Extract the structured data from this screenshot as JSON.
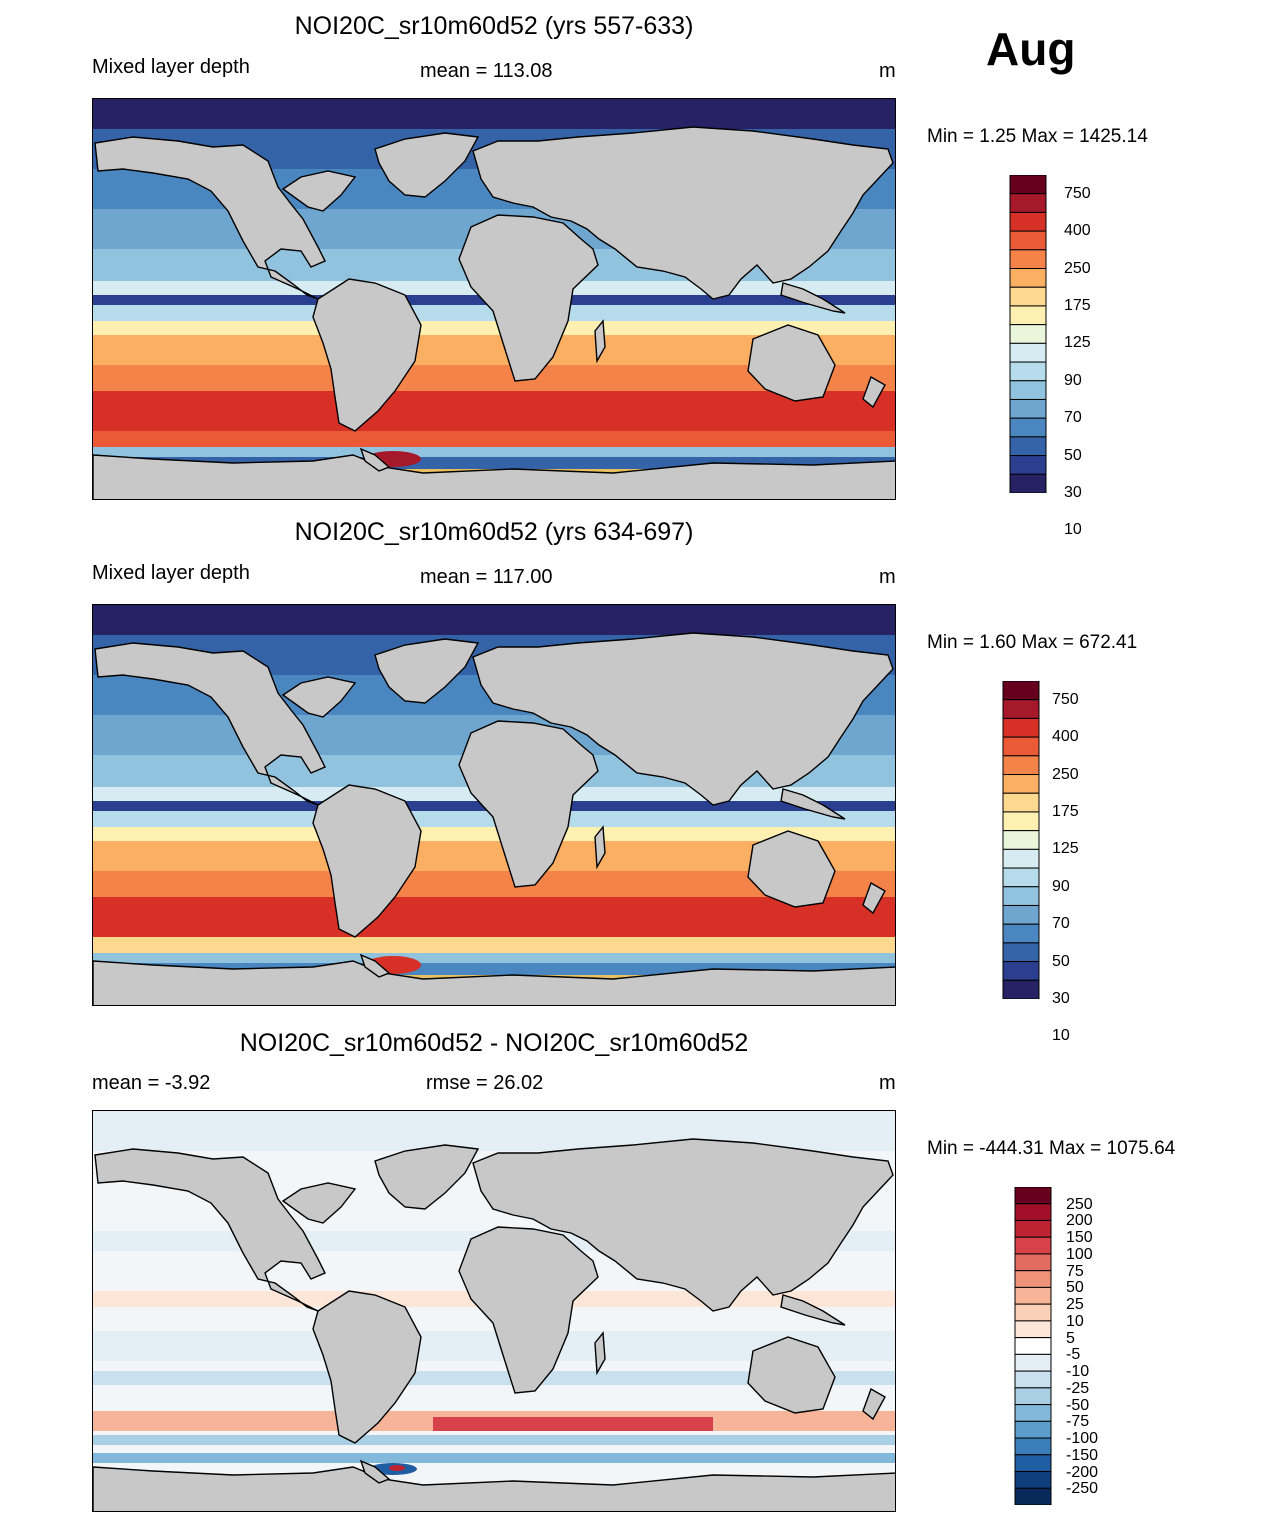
{
  "month": "Aug",
  "panels": [
    {
      "title": "NOI20C_sr10m60d52 (yrs 557-633)",
      "left_label": "Mixed layer depth",
      "center_label": "mean = 113.08",
      "units": "m",
      "minmax": "Min =    1.25 Max = 1425.14",
      "colorbar": {
        "labels": [
          "750",
          "400",
          "250",
          "175",
          "125",
          "90",
          "70",
          "50",
          "30",
          "10"
        ],
        "colors": [
          "#67001f",
          "#a6192a",
          "#d73027",
          "#ea5a36",
          "#f4834a",
          "#fbaf62",
          "#fdd88f",
          "#fdf0b0",
          "#e9f6d9",
          "#d6ecf2",
          "#b6dbea",
          "#92c3de",
          "#6ea6cf",
          "#4a86bf",
          "#3463a8",
          "#2a3f8f",
          "#262263"
        ]
      }
    },
    {
      "title": "NOI20C_sr10m60d52 (yrs 634-697)",
      "left_label": "Mixed layer depth",
      "center_label": "mean = 117.00",
      "units": "m",
      "minmax": "Min =    1.60 Max = 672.41",
      "colorbar": {
        "labels": [
          "750",
          "400",
          "250",
          "175",
          "125",
          "90",
          "70",
          "50",
          "30",
          "10"
        ],
        "colors": [
          "#67001f",
          "#a6192a",
          "#d73027",
          "#ea5a36",
          "#f4834a",
          "#fbaf62",
          "#fdd88f",
          "#fdf0b0",
          "#e9f6d9",
          "#d6ecf2",
          "#b6dbea",
          "#92c3de",
          "#6ea6cf",
          "#4a86bf",
          "#3463a8",
          "#2a3f8f",
          "#262263"
        ]
      }
    },
    {
      "title": "NOI20C_sr10m60d52 - NOI20C_sr10m60d52",
      "left_label": "mean =  -3.92",
      "center_label": "rmse =  26.02",
      "units": "m",
      "minmax": "Min = -444.31 Max = 1075.64",
      "colorbar": {
        "labels": [
          "250",
          "200",
          "150",
          "100",
          "75",
          "50",
          "25",
          "10",
          "5",
          "-5",
          "-10",
          "-25",
          "-50",
          "-75",
          "-100",
          "-150",
          "-200",
          "-250"
        ],
        "colors": [
          "#67001f",
          "#a11028",
          "#bf2332",
          "#d6414a",
          "#e26c5f",
          "#ee9378",
          "#f6b599",
          "#fad0b8",
          "#fde5d8",
          "#ffffff",
          "#e3eef5",
          "#c9e0ee",
          "#a9cfe5",
          "#82b9da",
          "#5d9dcb",
          "#3b7fb9",
          "#1f5ea3",
          "#103f7e",
          "#082a5a"
        ]
      }
    }
  ],
  "legend_colors": {
    "land": "#c8c8c8",
    "coast": "#000000"
  }
}
